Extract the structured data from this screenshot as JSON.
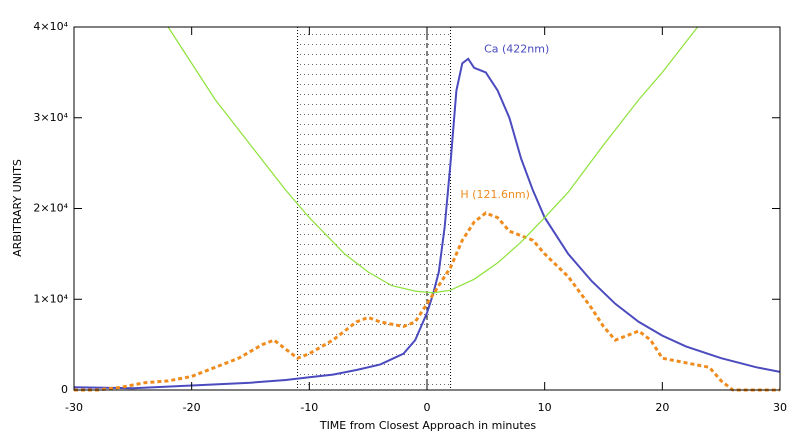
{
  "chart_data": {
    "type": "line",
    "xlabel": "TIME from Closest Approach in minutes",
    "ylabel": "ARBITRARY UNITS",
    "xlim": [
      -30,
      30
    ],
    "xticks": [
      -30,
      -20,
      -10,
      0,
      10,
      20,
      30
    ],
    "ylim": [
      0,
      40000
    ],
    "yticks": [
      0,
      {
        "value": 10000,
        "label": "1×10⁴"
      },
      {
        "value": 20000,
        "label": "2×10⁴"
      },
      {
        "value": 30000,
        "label": "3×10⁴"
      },
      {
        "value": 40000,
        "label": "4×10⁴"
      }
    ],
    "shaded_region": [
      -11,
      2
    ],
    "marker_line": 0,
    "series": [
      {
        "name": "Ca (422nm)",
        "color": "#4b4bbf",
        "x": [
          -30,
          -25,
          -20,
          -15,
          -12,
          -10,
          -8,
          -6,
          -4,
          -2,
          -1,
          0,
          0.5,
          1,
          1.5,
          2,
          2.5,
          3,
          3.5,
          4,
          5,
          6,
          7,
          8,
          9,
          10,
          12,
          14,
          16,
          18,
          20,
          22,
          25,
          28,
          30
        ],
        "values": [
          300,
          200,
          500,
          800,
          1100,
          1400,
          1700,
          2200,
          2800,
          4000,
          5500,
          8500,
          10500,
          13000,
          18000,
          25000,
          33000,
          36000,
          36500,
          35500,
          35000,
          33000,
          30000,
          25500,
          22000,
          19000,
          15000,
          12000,
          9500,
          7500,
          6000,
          4800,
          3500,
          2500,
          2000
        ]
      },
      {
        "name": "H (121.6nm)",
        "color": "#f08c1e",
        "dashed": true,
        "x": [
          -30,
          -28,
          -26,
          -24,
          -22,
          -20,
          -18,
          -16,
          -14,
          -13,
          -12,
          -11,
          -10,
          -8,
          -6,
          -5,
          -4,
          -2,
          -1,
          0,
          1,
          2,
          3,
          4,
          5,
          6,
          7,
          8,
          9,
          10,
          12,
          14,
          15,
          16,
          18,
          19,
          20,
          22,
          24,
          25,
          26,
          28,
          30
        ],
        "values": [
          0,
          0,
          300,
          800,
          1000,
          1500,
          2500,
          3500,
          5000,
          5500,
          4500,
          3500,
          4000,
          5500,
          7500,
          8000,
          7500,
          7000,
          7500,
          9500,
          11500,
          13500,
          16500,
          18500,
          19500,
          19000,
          17500,
          17000,
          16500,
          15000,
          12500,
          9000,
          7000,
          5500,
          6500,
          5500,
          3500,
          3000,
          2500,
          1000,
          0,
          0,
          0
        ]
      },
      {
        "color": "#8ee23a",
        "x": [
          -22,
          -18,
          -15,
          -12,
          -10,
          -7,
          -5,
          -3,
          -1,
          0.5,
          2,
          4,
          6,
          8,
          10,
          12,
          15,
          18,
          20,
          23
        ],
        "values": [
          40000,
          32000,
          27000,
          22000,
          19000,
          15000,
          13000,
          11500,
          10900,
          10700,
          11000,
          12200,
          14000,
          16300,
          19000,
          21800,
          27000,
          32000,
          35000,
          40000
        ]
      }
    ]
  }
}
